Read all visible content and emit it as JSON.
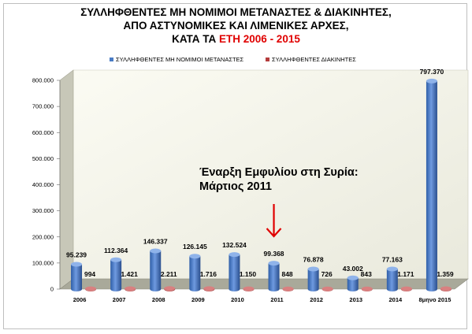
{
  "title": {
    "line1": "ΣΥΛΛΗΦΘΕΝΤΕΣ ΜΗ ΝΟΜΙΜΟΙ ΜΕΤΑΝΑΣΤΕΣ & ΔΙΑΚΙΝΗΤΕΣ,",
    "line2": "ΑΠΟ ΑΣΤΥΝΟΜΙΚΕΣ ΚΑΙ ΛΙΜΕΝΙΚΕΣ ΑΡΧΕΣ,",
    "line3_prefix": "ΚΑΤΑ ΤΑ ",
    "line3_highlight": "ΕΤΗ 2006 - 2015"
  },
  "annotation": {
    "line1": "Έναρξη Εμφυλίου στη Συρία:",
    "line2": "Μάρτιος 2011",
    "arrow_target": "2011"
  },
  "colors": {
    "series1": "#4a7cc4",
    "series2": "#b43c3c",
    "arrow": "#e00000",
    "title_highlight": "#e00000"
  },
  "chart_data": {
    "type": "bar",
    "categories": [
      "2006",
      "2007",
      "2008",
      "2009",
      "2010",
      "2011",
      "2012",
      "2013",
      "2014",
      "8μηνο 2015"
    ],
    "series": [
      {
        "name": "ΣΥΛΛΗΦΘΕΝΤΕΣ ΜΗ ΝΟΜΙΜΟΙ ΜΕΤΑΝΑΣΤΕΣ",
        "values": [
          95239,
          112364,
          146337,
          126145,
          132524,
          99368,
          76878,
          43002,
          77163,
          797370
        ],
        "labels": [
          "95.239",
          "112.364",
          "146.337",
          "126.145",
          "132.524",
          "99.368",
          "76.878",
          "43.002",
          "77.163",
          "797.370"
        ]
      },
      {
        "name": "ΣΥΛΛΗΦΘΕΝΤΕΣ ΔΙΑΚΙΝΗΤΕΣ",
        "values": [
          994,
          1421,
          2211,
          1716,
          1150,
          848,
          726,
          843,
          1171,
          1359
        ],
        "labels": [
          "994",
          "1.421",
          "2.211",
          "1.716",
          "1.150",
          "848",
          "726",
          "843",
          "1.171",
          "1.359"
        ]
      }
    ],
    "ylim": [
      0,
      800000
    ],
    "yticks": [
      0,
      100000,
      200000,
      300000,
      400000,
      500000,
      600000,
      700000,
      800000
    ],
    "ytick_labels": [
      "0",
      "100.000",
      "200.000",
      "300.000",
      "400.000",
      "500.000",
      "600.000",
      "700.000",
      "800.000"
    ],
    "grid": false,
    "legend": "top"
  }
}
